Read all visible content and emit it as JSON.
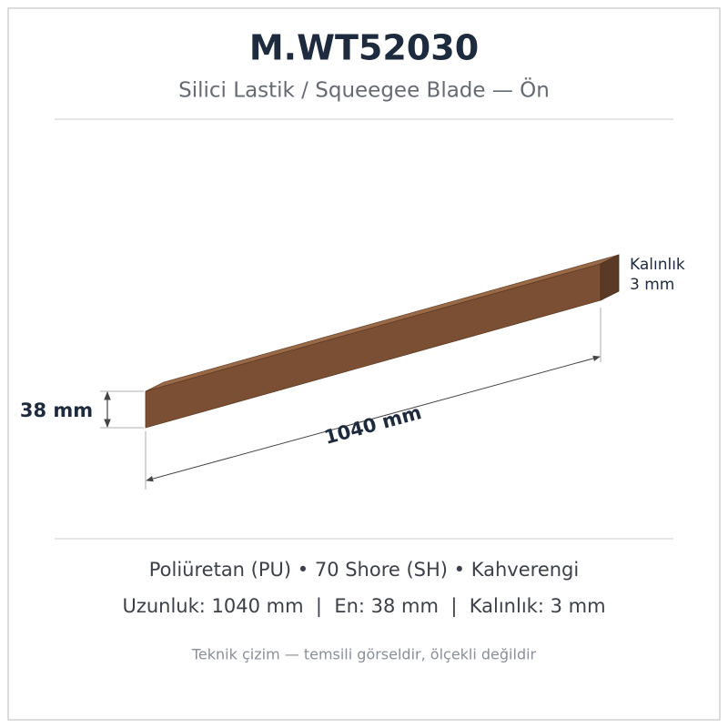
{
  "header": {
    "title": "M.WT52030",
    "subtitle": "Silici Lastik / Squeegee Blade — Ön"
  },
  "drawing": {
    "height_label": "38 mm",
    "length_label": "1040 mm",
    "thickness_label": [
      "Kalınlık",
      "3 mm"
    ]
  },
  "specs": {
    "material": "Poliüretan (PU) • 70 Shore (SH) • Kahverengi",
    "dimensions": "Uzunluk: 1040 mm  |  En: 38 mm  |  Kalınlık: 3 mm"
  },
  "footer": "Teknik çizim — temsili görseldir, ölçekli değildir"
}
